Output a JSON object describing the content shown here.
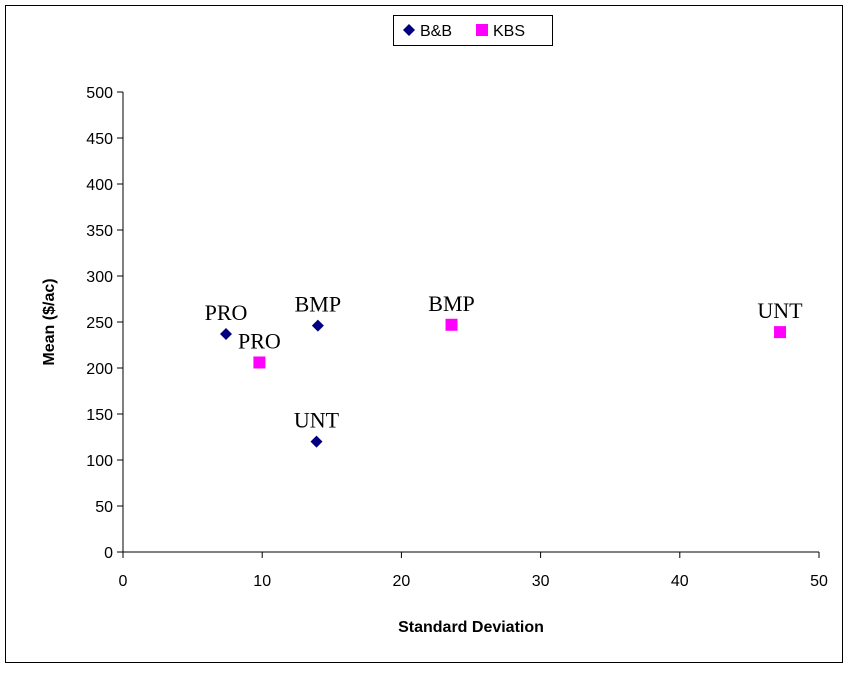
{
  "chart_data": {
    "type": "scatter",
    "title": "",
    "xlabel": "Standard Deviation",
    "ylabel": "Mean ($/ac)",
    "xlim": [
      0,
      50
    ],
    "ylim": [
      0,
      500
    ],
    "xticks": [
      0,
      10,
      20,
      30,
      40,
      50
    ],
    "yticks": [
      0,
      50,
      100,
      150,
      200,
      250,
      300,
      350,
      400,
      450,
      500
    ],
    "grid": false,
    "legend_position": "top-center",
    "series": [
      {
        "name": "B&B",
        "marker": "diamond",
        "color": "#000080",
        "points": [
          {
            "x": 7.4,
            "y": 237,
            "label": "PRO"
          },
          {
            "x": 14.0,
            "y": 246,
            "label": "BMP"
          },
          {
            "x": 13.9,
            "y": 120,
            "label": "UNT"
          }
        ]
      },
      {
        "name": "KBS",
        "marker": "square",
        "color": "#FF00FF",
        "points": [
          {
            "x": 9.8,
            "y": 206,
            "label": "PRO"
          },
          {
            "x": 23.6,
            "y": 247,
            "label": "BMP"
          },
          {
            "x": 47.2,
            "y": 239,
            "label": "UNT"
          }
        ]
      }
    ]
  }
}
